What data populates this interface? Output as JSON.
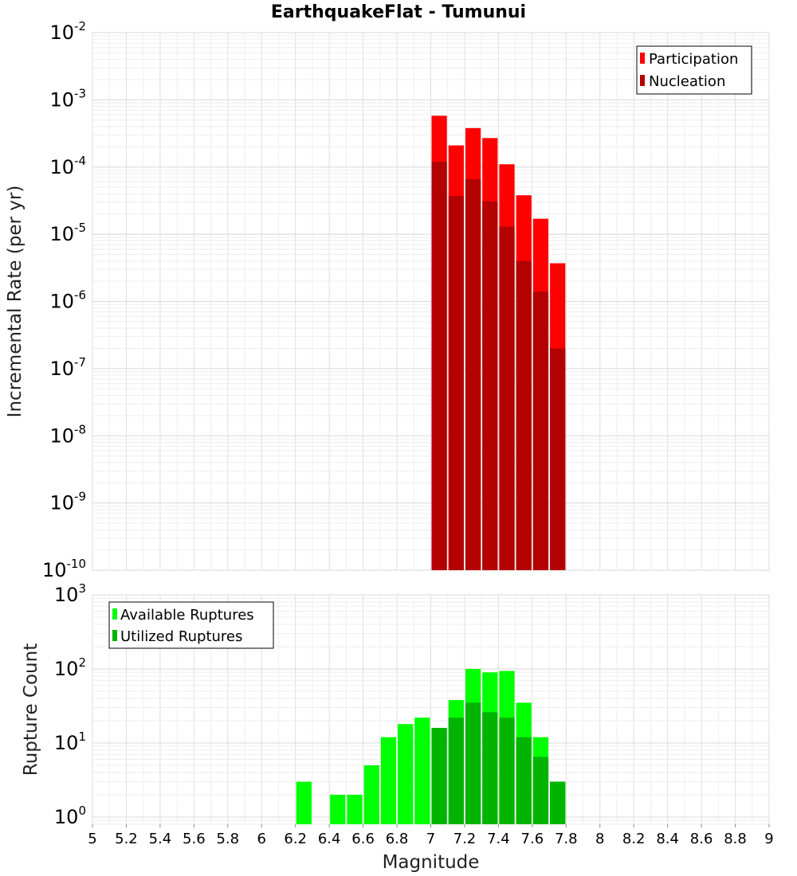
{
  "title": "EarthquakeFlat - Tumunui",
  "chart_data": [
    {
      "type": "bar",
      "yscale": "log",
      "ylabel": "Incremental Rate (per yr)",
      "ylim": [
        1e-10,
        0.01
      ],
      "xlim": [
        5,
        9
      ],
      "grid": true,
      "legend_position": "top-right",
      "ytick_exponents": [
        -10,
        -9,
        -8,
        -7,
        -6,
        -5,
        -4,
        -3,
        -2
      ],
      "ytick_base": "10",
      "bin_width": 0.1,
      "x": [
        7.05,
        7.15,
        7.25,
        7.35,
        7.45,
        7.55,
        7.65,
        7.75
      ],
      "series": [
        {
          "name": "Participation",
          "color": "#ff0000",
          "values": [
            0.00058,
            0.00021,
            0.00038,
            0.00027,
            0.00011,
            3.8e-05,
            1.7e-05,
            3.7e-06
          ]
        },
        {
          "name": "Nucleation",
          "color": "#b30000",
          "values": [
            0.00012,
            3.7e-05,
            6.6e-05,
            3.1e-05,
            1.3e-05,
            4e-06,
            1.4e-06,
            2e-07
          ]
        }
      ]
    },
    {
      "type": "bar",
      "yscale": "log",
      "ylabel": "Rupture Count",
      "xlabel": "Magnitude",
      "ylim": [
        0.8,
        1000
      ],
      "xlim": [
        5,
        9
      ],
      "grid": true,
      "legend_position": "top-left",
      "ytick_exponents": [
        0,
        1,
        2,
        3
      ],
      "ytick_base": "10",
      "bin_width": 0.1,
      "xticks": [
        "5",
        "5.2",
        "5.4",
        "5.6",
        "5.8",
        "6",
        "6.2",
        "6.4",
        "6.6",
        "6.8",
        "7",
        "7.2",
        "7.4",
        "7.6",
        "7.8",
        "8",
        "8.2",
        "8.4",
        "8.6",
        "8.8",
        "9"
      ],
      "series": [
        {
          "name": "Available Ruptures",
          "color": "#00ff00",
          "x": [
            6.25,
            6.45,
            6.55,
            6.65,
            6.75,
            6.85,
            6.95,
            7.05,
            7.15,
            7.25,
            7.35,
            7.45,
            7.55,
            7.65,
            7.75
          ],
          "values": [
            3,
            2,
            2,
            5,
            12,
            18,
            22,
            16,
            38,
            100,
            90,
            94,
            35,
            12,
            3
          ]
        },
        {
          "name": "Utilized Ruptures",
          "color": "#00b400",
          "x": [
            7.05,
            7.15,
            7.25,
            7.35,
            7.45,
            7.55,
            7.65,
            7.75
          ],
          "values": [
            16,
            22,
            35,
            26,
            22,
            12,
            6.5,
            3
          ]
        }
      ]
    }
  ]
}
